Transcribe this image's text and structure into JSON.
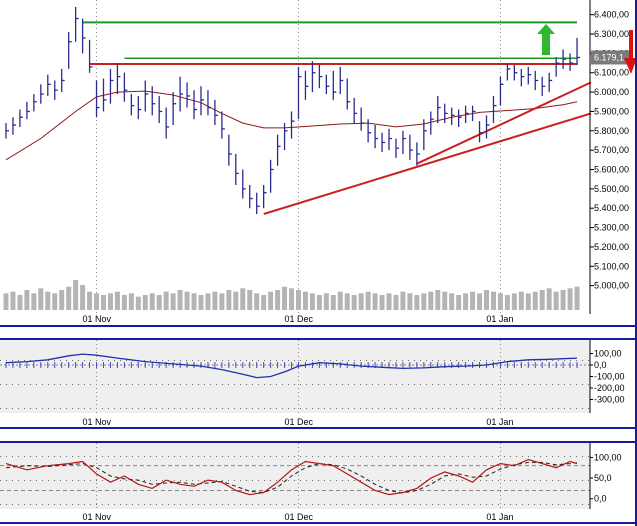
{
  "chart_data": {
    "type": "bar",
    "colors": {
      "price_bars": "#2b2b8f",
      "moving_average": "#8b1a1a",
      "support_lines": "#cc1f1f",
      "resistance_line": "#1e9a1e",
      "volume": "#b4b4b4",
      "cci_line": "#2233aa",
      "stoch_k": "#b51616",
      "stoch_d": "#222222",
      "price_tag": "#7a7a7a",
      "up_arrow": "#2eb82e",
      "down_arrow": "#dd1111",
      "border": "#1a1aa0"
    },
    "x_ticks": [
      "01 Nov",
      "01 Dec",
      "01 Jan"
    ],
    "price_panel": {
      "ylim": [
        4900,
        6450
      ],
      "ticks": [
        "6.400,00",
        "6.300,00",
        "6.200,00",
        "6.100,00",
        "6.000,00",
        "5.900,00",
        "5.800,00",
        "5.700,00",
        "5.600,00",
        "5.500,00",
        "5.400,00",
        "5.300,00",
        "5.200,00",
        "5.100,00",
        "5.000,00"
      ],
      "tick_values": [
        6400,
        6300,
        6200,
        6100,
        6000,
        5900,
        5800,
        5700,
        5600,
        5500,
        5400,
        5300,
        5200,
        5100,
        5000
      ],
      "last_price": "6.179,1",
      "last_price_value": 6179,
      "x_range": [
        0,
        83
      ],
      "x_tick_positions": [
        13,
        42,
        71
      ],
      "bars": [
        [
          0,
          5840,
          5760,
          5800
        ],
        [
          1,
          5870,
          5780,
          5830
        ],
        [
          2,
          5910,
          5820,
          5870
        ],
        [
          3,
          5950,
          5860,
          5900
        ],
        [
          4,
          5990,
          5900,
          5950
        ],
        [
          5,
          6040,
          5940,
          5990
        ],
        [
          6,
          6090,
          5980,
          6040
        ],
        [
          7,
          6060,
          5960,
          6010
        ],
        [
          8,
          6120,
          6000,
          6060
        ],
        [
          9,
          6310,
          6120,
          6260
        ],
        [
          10,
          6440,
          6260,
          6380
        ],
        [
          11,
          6380,
          6200,
          6280
        ],
        [
          12,
          6270,
          6100,
          6130
        ],
        [
          13,
          6060,
          5870,
          5920
        ],
        [
          14,
          6070,
          5900,
          5960
        ],
        [
          15,
          6120,
          5940,
          6060
        ],
        [
          16,
          6150,
          5990,
          6080
        ],
        [
          17,
          6100,
          5950,
          6010
        ],
        [
          18,
          5990,
          5880,
          5930
        ],
        [
          19,
          5980,
          5860,
          5910
        ],
        [
          20,
          6060,
          5900,
          5990
        ],
        [
          21,
          6030,
          5880,
          5940
        ],
        [
          22,
          5980,
          5840,
          5900
        ],
        [
          23,
          5920,
          5760,
          5820
        ],
        [
          24,
          6000,
          5830,
          5940
        ],
        [
          25,
          6080,
          5900,
          5990
        ],
        [
          26,
          6050,
          5920,
          5980
        ],
        [
          27,
          6010,
          5860,
          5910
        ],
        [
          28,
          6030,
          5880,
          5960
        ],
        [
          29,
          6010,
          5880,
          5920
        ],
        [
          30,
          5960,
          5830,
          5880
        ],
        [
          31,
          5900,
          5760,
          5810
        ],
        [
          32,
          5780,
          5620,
          5680
        ],
        [
          33,
          5680,
          5520,
          5580
        ],
        [
          34,
          5600,
          5450,
          5500
        ],
        [
          35,
          5520,
          5400,
          5450
        ],
        [
          36,
          5480,
          5370,
          5410
        ],
        [
          37,
          5520,
          5400,
          5480
        ],
        [
          38,
          5650,
          5480,
          5600
        ],
        [
          39,
          5780,
          5620,
          5720
        ],
        [
          40,
          5840,
          5700,
          5800
        ],
        [
          41,
          5900,
          5760,
          5850
        ],
        [
          42,
          6130,
          5860,
          6080
        ],
        [
          43,
          6110,
          5960,
          6030
        ],
        [
          44,
          6160,
          6000,
          6100
        ],
        [
          45,
          6140,
          6020,
          6080
        ],
        [
          46,
          6090,
          5990,
          6030
        ],
        [
          47,
          6110,
          5960,
          6000
        ],
        [
          48,
          6130,
          5990,
          6060
        ],
        [
          49,
          6070,
          5910,
          5950
        ],
        [
          50,
          5970,
          5840,
          5890
        ],
        [
          51,
          5920,
          5800,
          5840
        ],
        [
          52,
          5860,
          5740,
          5790
        ],
        [
          53,
          5830,
          5710,
          5760
        ],
        [
          54,
          5790,
          5690,
          5740
        ],
        [
          55,
          5810,
          5700,
          5760
        ],
        [
          56,
          5760,
          5660,
          5710
        ],
        [
          57,
          5800,
          5680,
          5760
        ],
        [
          58,
          5780,
          5650,
          5700
        ],
        [
          59,
          5740,
          5620,
          5680
        ],
        [
          60,
          5860,
          5700,
          5800
        ],
        [
          61,
          5900,
          5780,
          5860
        ],
        [
          62,
          5980,
          5840,
          5920
        ],
        [
          63,
          5940,
          5840,
          5890
        ],
        [
          64,
          5920,
          5830,
          5880
        ],
        [
          65,
          5910,
          5820,
          5870
        ],
        [
          66,
          5930,
          5840,
          5890
        ],
        [
          67,
          5930,
          5850,
          5900
        ],
        [
          68,
          5850,
          5740,
          5790
        ],
        [
          69,
          5880,
          5760,
          5830
        ],
        [
          70,
          5980,
          5840,
          5930
        ],
        [
          71,
          6080,
          5930,
          6040
        ],
        [
          72,
          6150,
          6060,
          6120
        ],
        [
          73,
          6140,
          6060,
          6100
        ],
        [
          74,
          6120,
          6030,
          6080
        ],
        [
          75,
          6130,
          6040,
          6090
        ],
        [
          76,
          6110,
          6010,
          6060
        ],
        [
          77,
          6080,
          5980,
          6030
        ],
        [
          78,
          6100,
          6000,
          6060
        ],
        [
          79,
          6180,
          6080,
          6150
        ],
        [
          80,
          6220,
          6120,
          6170
        ],
        [
          81,
          6200,
          6110,
          6150
        ],
        [
          82,
          6280,
          6140,
          6179
        ]
      ],
      "moving_average": [
        [
          0,
          5650
        ],
        [
          5,
          5760
        ],
        [
          10,
          5900
        ],
        [
          13,
          5975
        ],
        [
          16,
          6000
        ],
        [
          20,
          6005
        ],
        [
          24,
          5985
        ],
        [
          28,
          5945
        ],
        [
          31,
          5890
        ],
        [
          34,
          5840
        ],
        [
          37,
          5815
        ],
        [
          40,
          5815
        ],
        [
          44,
          5825
        ],
        [
          48,
          5835
        ],
        [
          52,
          5840
        ],
        [
          56,
          5820
        ],
        [
          60,
          5835
        ],
        [
          64,
          5870
        ],
        [
          68,
          5895
        ],
        [
          72,
          5905
        ],
        [
          76,
          5915
        ],
        [
          80,
          5935
        ],
        [
          82,
          5950
        ]
      ],
      "resistance_line": [
        [
          11,
          6360
        ],
        [
          82,
          6360
        ]
      ],
      "green_line_2": [
        [
          17,
          6175
        ],
        [
          82,
          6175
        ]
      ],
      "red_horizontal": [
        [
          12,
          6145
        ],
        [
          82,
          6145
        ]
      ],
      "support_line_1": [
        [
          37,
          5370
        ],
        [
          84,
          5890
        ]
      ],
      "support_line_2": [
        [
          59,
          5630
        ],
        [
          84,
          6050
        ]
      ]
    },
    "volume": [
      10,
      11,
      9,
      12,
      10,
      13,
      11,
      10,
      12,
      14,
      18,
      15,
      11,
      10,
      9,
      10,
      11,
      9,
      10,
      8,
      9,
      10,
      9,
      11,
      10,
      12,
      11,
      10,
      9,
      10,
      11,
      10,
      12,
      11,
      13,
      12,
      10,
      9,
      11,
      12,
      14,
      13,
      12,
      11,
      10,
      9,
      10,
      9,
      11,
      10,
      9,
      10,
      11,
      10,
      9,
      10,
      9,
      11,
      10,
      9,
      10,
      11,
      12,
      11,
      10,
      9,
      10,
      11,
      10,
      12,
      11,
      10,
      9,
      10,
      11,
      10,
      11,
      12,
      13,
      11,
      12,
      13,
      14
    ],
    "cci_panel": {
      "ylim": [
        -400,
        200
      ],
      "ticks": [
        "100,00",
        "0,0",
        "-100,00",
        "-200,00",
        "-300,00"
      ],
      "tick_values": [
        100,
        0,
        -100,
        -200,
        -300
      ],
      "cci_line": [
        [
          0,
          20
        ],
        [
          3,
          30
        ],
        [
          6,
          45
        ],
        [
          9,
          80
        ],
        [
          11,
          95
        ],
        [
          13,
          85
        ],
        [
          16,
          60
        ],
        [
          20,
          30
        ],
        [
          24,
          10
        ],
        [
          28,
          -10
        ],
        [
          31,
          -40
        ],
        [
          34,
          -80
        ],
        [
          36,
          -110
        ],
        [
          38,
          -100
        ],
        [
          40,
          -60
        ],
        [
          42,
          -10
        ],
        [
          45,
          20
        ],
        [
          48,
          10
        ],
        [
          51,
          -10
        ],
        [
          54,
          -20
        ],
        [
          57,
          -30
        ],
        [
          60,
          -25
        ],
        [
          63,
          -15
        ],
        [
          66,
          -10
        ],
        [
          69,
          0
        ],
        [
          72,
          30
        ],
        [
          75,
          45
        ],
        [
          78,
          50
        ],
        [
          80,
          55
        ],
        [
          82,
          60
        ]
      ]
    },
    "stoch_panel": {
      "ylim": [
        -20,
        130
      ],
      "ticks": [
        "100,00",
        "50,0",
        "0,0"
      ],
      "tick_values": [
        100,
        50,
        0
      ],
      "k_line": [
        [
          0,
          85
        ],
        [
          3,
          70
        ],
        [
          6,
          80
        ],
        [
          9,
          85
        ],
        [
          11,
          90
        ],
        [
          13,
          60
        ],
        [
          15,
          40
        ],
        [
          17,
          55
        ],
        [
          19,
          35
        ],
        [
          21,
          25
        ],
        [
          23,
          45
        ],
        [
          25,
          35
        ],
        [
          27,
          30
        ],
        [
          29,
          45
        ],
        [
          31,
          40
        ],
        [
          33,
          20
        ],
        [
          35,
          10
        ],
        [
          37,
          15
        ],
        [
          39,
          40
        ],
        [
          41,
          70
        ],
        [
          43,
          90
        ],
        [
          45,
          85
        ],
        [
          47,
          80
        ],
        [
          49,
          60
        ],
        [
          51,
          40
        ],
        [
          53,
          20
        ],
        [
          55,
          10
        ],
        [
          57,
          15
        ],
        [
          59,
          25
        ],
        [
          61,
          50
        ],
        [
          63,
          65
        ],
        [
          65,
          55
        ],
        [
          67,
          40
        ],
        [
          69,
          70
        ],
        [
          71,
          85
        ],
        [
          73,
          80
        ],
        [
          75,
          95
        ],
        [
          77,
          85
        ],
        [
          79,
          75
        ],
        [
          81,
          90
        ],
        [
          82,
          85
        ]
      ],
      "d_line": [
        [
          0,
          75
        ],
        [
          3,
          80
        ],
        [
          6,
          78
        ],
        [
          9,
          82
        ],
        [
          11,
          85
        ],
        [
          13,
          75
        ],
        [
          15,
          55
        ],
        [
          17,
          48
        ],
        [
          19,
          45
        ],
        [
          21,
          35
        ],
        [
          23,
          38
        ],
        [
          25,
          40
        ],
        [
          27,
          35
        ],
        [
          29,
          38
        ],
        [
          31,
          42
        ],
        [
          33,
          30
        ],
        [
          35,
          18
        ],
        [
          37,
          15
        ],
        [
          39,
          28
        ],
        [
          41,
          55
        ],
        [
          43,
          75
        ],
        [
          45,
          85
        ],
        [
          47,
          82
        ],
        [
          49,
          72
        ],
        [
          51,
          55
        ],
        [
          53,
          35
        ],
        [
          55,
          20
        ],
        [
          57,
          14
        ],
        [
          59,
          20
        ],
        [
          61,
          35
        ],
        [
          63,
          55
        ],
        [
          65,
          60
        ],
        [
          67,
          52
        ],
        [
          69,
          55
        ],
        [
          71,
          72
        ],
        [
          73,
          82
        ],
        [
          75,
          88
        ],
        [
          77,
          88
        ],
        [
          79,
          82
        ],
        [
          81,
          85
        ],
        [
          82,
          87
        ]
      ]
    }
  }
}
